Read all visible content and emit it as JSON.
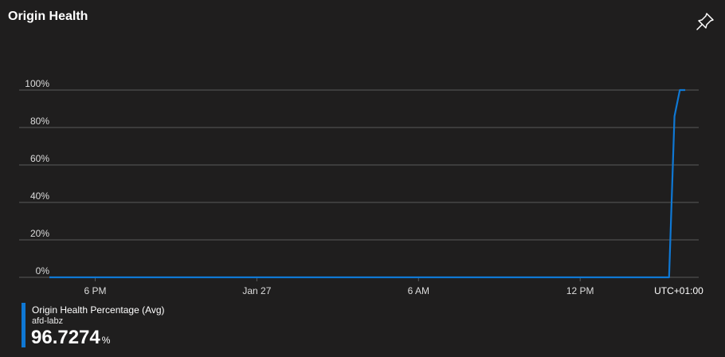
{
  "header": {
    "title": "Origin Health",
    "pin_icon": "pin-icon"
  },
  "colors": {
    "background": "#1f1e1e",
    "grid": "#5a5a5a",
    "series": "#0f78d4",
    "text": "#dcdcdc"
  },
  "chart_data": {
    "type": "line",
    "title": "Origin Health",
    "xlabel": "",
    "ylabel": "",
    "timezone": "UTC+01:00",
    "y_ticks": [
      "0%",
      "20%",
      "40%",
      "60%",
      "80%",
      "100%"
    ],
    "ylim": [
      0,
      100
    ],
    "x_ticks": [
      "6 PM",
      "Jan 27",
      "6 AM",
      "12 PM"
    ],
    "x_tick_hours": [
      18,
      24,
      30,
      36
    ],
    "xlim_hours": [
      16.3,
      40.4
    ],
    "grid": true,
    "series": [
      {
        "name": "Origin Health Percentage (Avg)",
        "x_hours": [
          16.3,
          39.3,
          39.5,
          39.7,
          39.9
        ],
        "values": [
          0,
          0,
          86,
          100,
          100
        ]
      }
    ]
  },
  "legend": {
    "name": "Origin Health Percentage (Avg)",
    "resource": "afd-labz",
    "value": "96.7274",
    "unit": "%"
  }
}
